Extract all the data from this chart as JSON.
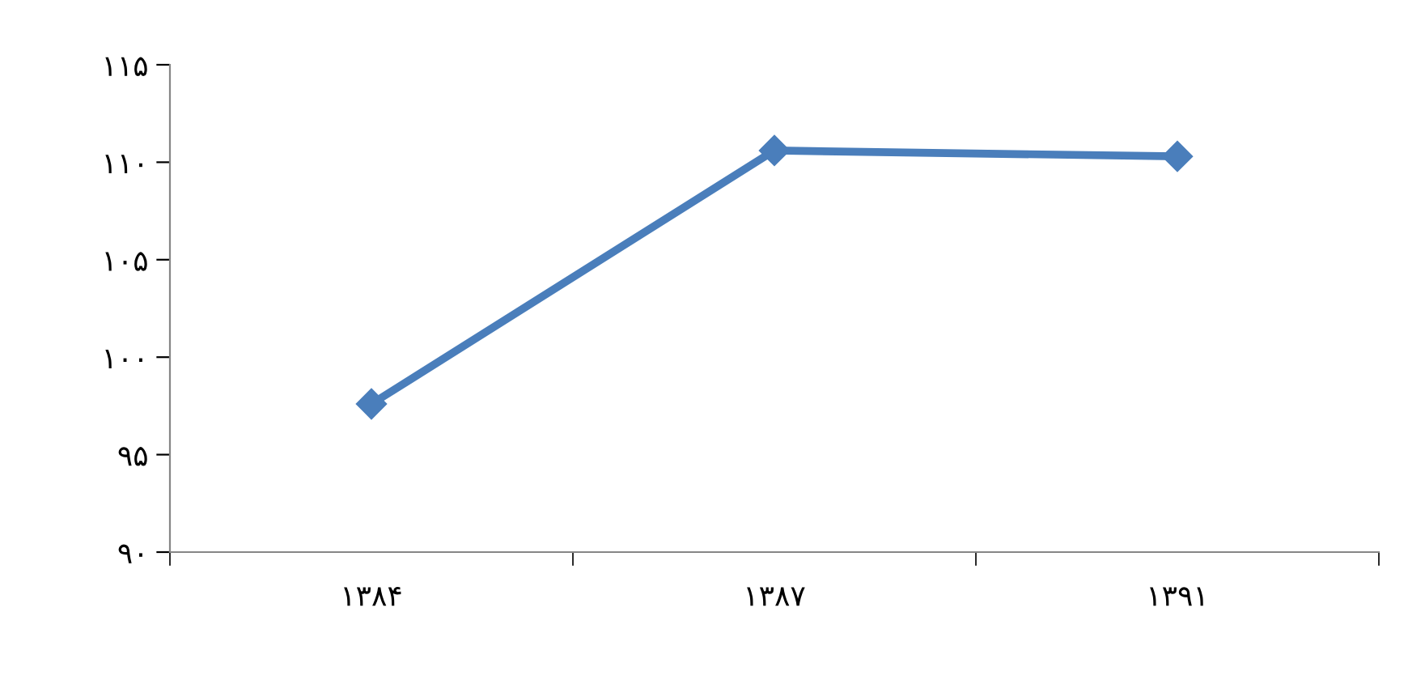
{
  "chart_data": {
    "type": "line",
    "categories": [
      "۱۳۸۴",
      "۱۳۸۷",
      "۱۳۹۱"
    ],
    "series": [
      {
        "color": "#4a7ebb",
        "values": [
          97.6,
          110.6,
          110.3
        ]
      }
    ],
    "ylim": [
      90,
      115
    ],
    "yticks": [
      {
        "value": 90,
        "label": "۹۰"
      },
      {
        "value": 95,
        "label": "۹۵"
      },
      {
        "value": 100,
        "label": "۱۰۰"
      },
      {
        "value": 105,
        "label": "۱۰۵"
      },
      {
        "value": 110,
        "label": "۱۱۰"
      },
      {
        "value": 115,
        "label": "۱۱۵"
      }
    ],
    "marker": "diamond",
    "line_style": "solid",
    "grid": false,
    "legend": false
  }
}
